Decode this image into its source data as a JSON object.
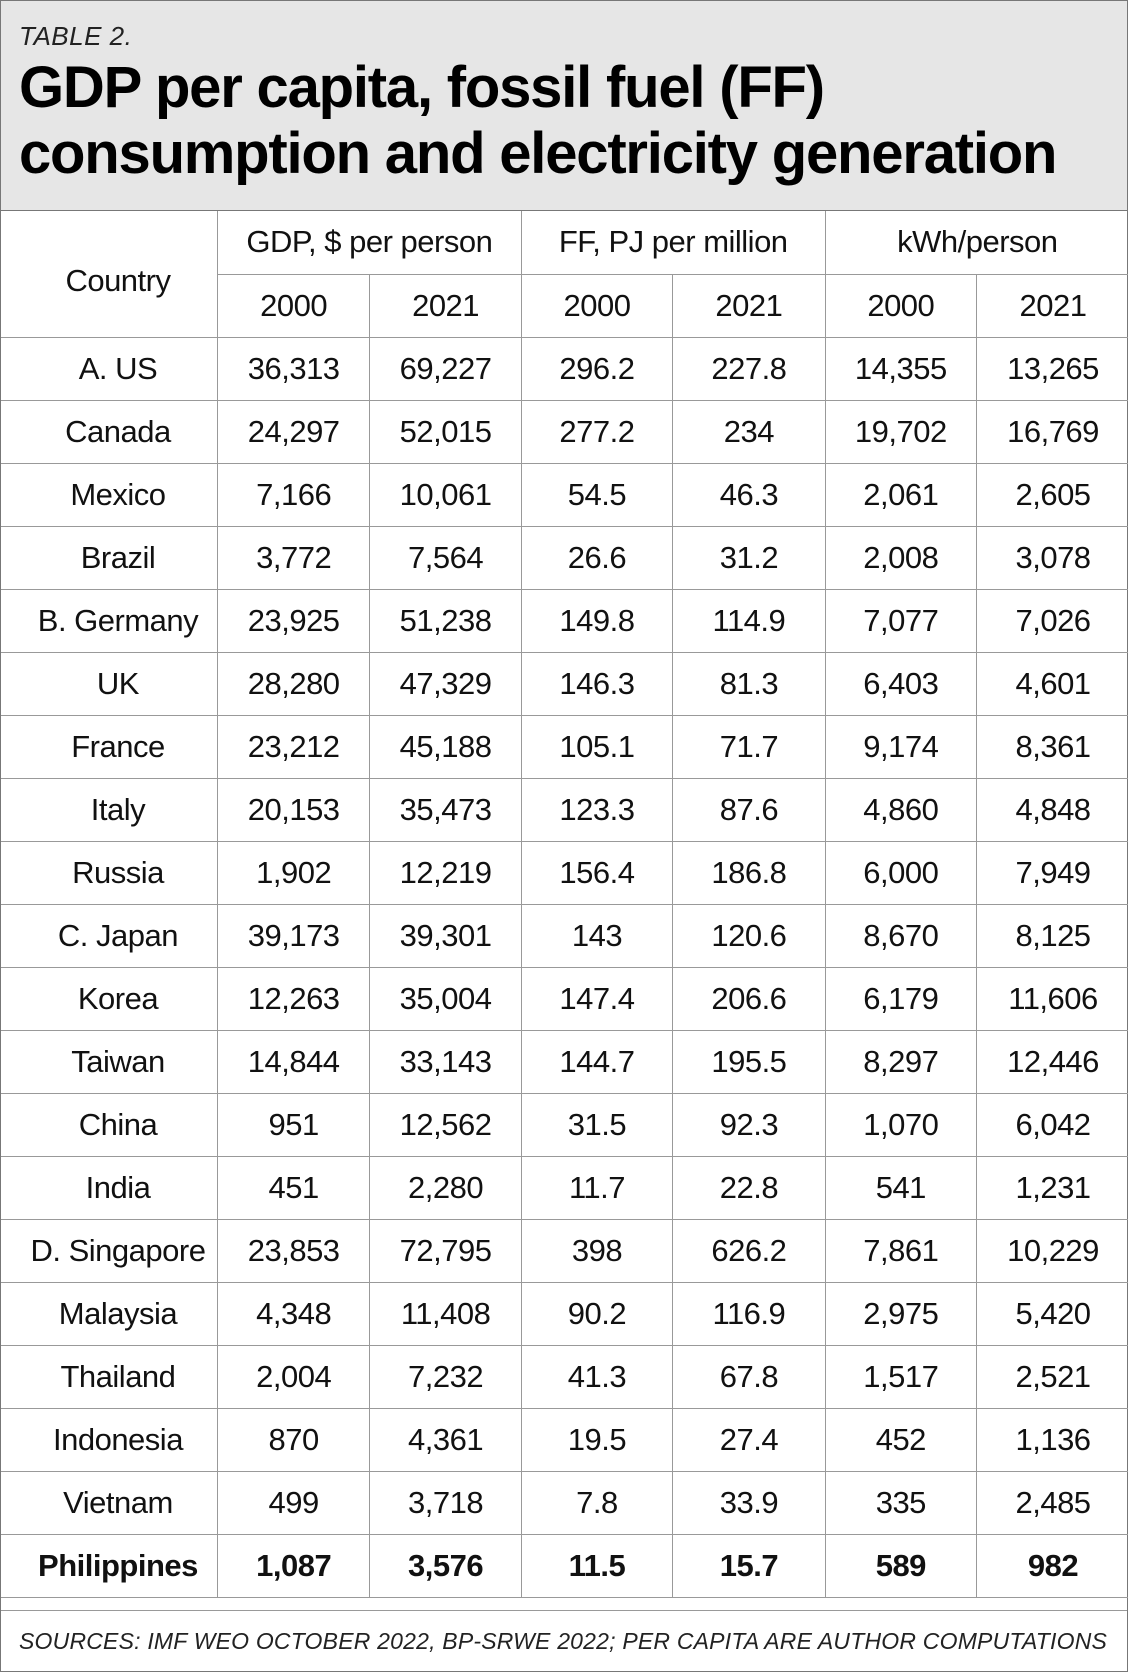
{
  "eyebrow": "TABLE 2.",
  "title_line1": "GDP per capita, fossil fuel (FF)",
  "title_line2": "consumption and electricity generation",
  "headers": {
    "country": "Country",
    "gdp": "GDP, $ per person",
    "ff": "FF, PJ per million",
    "kwh": "kWh/person",
    "years": [
      "2000",
      "2021",
      "2000",
      "2021",
      "2000",
      "2021"
    ]
  },
  "rows": [
    {
      "country": "A. US",
      "v": [
        "36,313",
        "69,227",
        "296.2",
        "227.8",
        "14,355",
        "13,265"
      ]
    },
    {
      "country": "Canada",
      "v": [
        "24,297",
        "52,015",
        "277.2",
        "234",
        "19,702",
        "16,769"
      ]
    },
    {
      "country": "Mexico",
      "v": [
        "7,166",
        "10,061",
        "54.5",
        "46.3",
        "2,061",
        "2,605"
      ]
    },
    {
      "country": "Brazil",
      "v": [
        "3,772",
        "7,564",
        "26.6",
        "31.2",
        "2,008",
        "3,078"
      ]
    },
    {
      "country": "B. Germany",
      "v": [
        "23,925",
        "51,238",
        "149.8",
        "114.9",
        "7,077",
        "7,026"
      ]
    },
    {
      "country": "UK",
      "v": [
        "28,280",
        "47,329",
        "146.3",
        "81.3",
        "6,403",
        "4,601"
      ]
    },
    {
      "country": "France",
      "v": [
        "23,212",
        "45,188",
        "105.1",
        "71.7",
        "9,174",
        "8,361"
      ]
    },
    {
      "country": "Italy",
      "v": [
        "20,153",
        "35,473",
        "123.3",
        "87.6",
        "4,860",
        "4,848"
      ]
    },
    {
      "country": "Russia",
      "v": [
        "1,902",
        "12,219",
        "156.4",
        "186.8",
        "6,000",
        "7,949"
      ]
    },
    {
      "country": "C. Japan",
      "v": [
        "39,173",
        "39,301",
        "143",
        "120.6",
        "8,670",
        "8,125"
      ]
    },
    {
      "country": "Korea",
      "v": [
        "12,263",
        "35,004",
        "147.4",
        "206.6",
        "6,179",
        "11,606"
      ]
    },
    {
      "country": "Taiwan",
      "v": [
        "14,844",
        "33,143",
        "144.7",
        "195.5",
        "8,297",
        "12,446"
      ]
    },
    {
      "country": "China",
      "v": [
        "951",
        "12,562",
        "31.5",
        "92.3",
        "1,070",
        "6,042"
      ]
    },
    {
      "country": "India",
      "v": [
        "451",
        "2,280",
        "11.7",
        "22.8",
        "541",
        "1,231"
      ]
    },
    {
      "country": "D. Singapore",
      "v": [
        "23,853",
        "72,795",
        "398",
        "626.2",
        "7,861",
        "10,229"
      ]
    },
    {
      "country": "Malaysia",
      "v": [
        "4,348",
        "11,408",
        "90.2",
        "116.9",
        "2,975",
        "5,420"
      ]
    },
    {
      "country": "Thailand",
      "v": [
        "2,004",
        "7,232",
        "41.3",
        "67.8",
        "1,517",
        "2,521"
      ]
    },
    {
      "country": "Indonesia",
      "v": [
        "870",
        "4,361",
        "19.5",
        "27.4",
        "452",
        "1,136"
      ]
    },
    {
      "country": "Vietnam",
      "v": [
        "499",
        "3,718",
        "7.8",
        "33.9",
        "335",
        "2,485"
      ]
    },
    {
      "country": "Philippines",
      "v": [
        "1,087",
        "3,576",
        "11.5",
        "15.7",
        "589",
        "982"
      ],
      "bold": true
    }
  ],
  "footer": "SOURCES: IMF WEO OCTOBER 2022, BP-SRWE 2022; PER CAPITA ARE AUTHOR COMPUTATIONS"
}
